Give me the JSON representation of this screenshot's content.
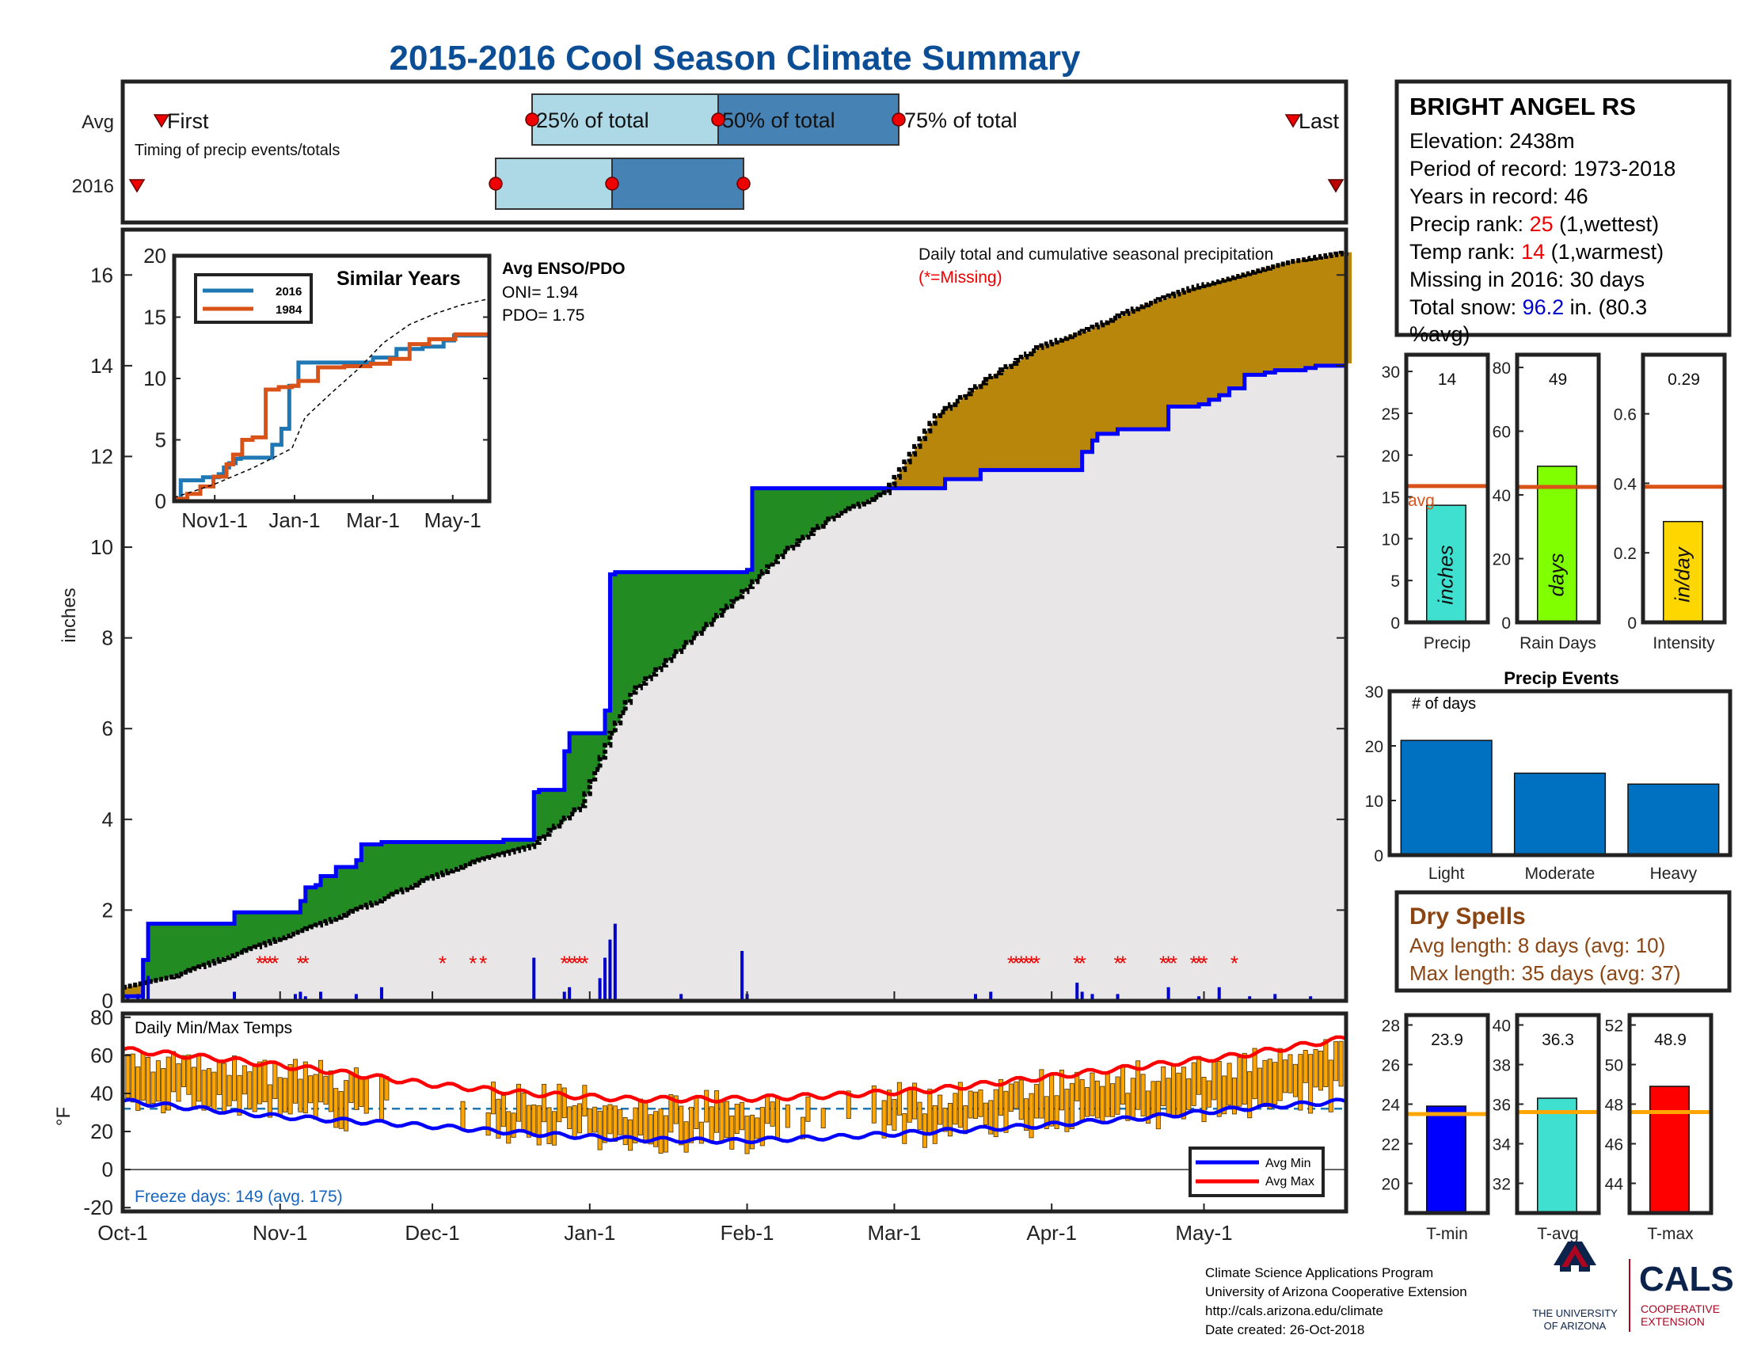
{
  "title": "2015-2016 Cool Season Climate Summary",
  "timing": {
    "row_labels": [
      "Avg",
      "2016"
    ],
    "first_label": "First",
    "last_label": "Last",
    "caption": "Timing of precip events/totals",
    "pct_labels": [
      "25% of total",
      "50% of total",
      "75% of total"
    ]
  },
  "station": {
    "name": "BRIGHT ANGEL RS",
    "elevation": "Elevation: 2438m",
    "period": "Period of record: 1973-2018",
    "years": "Years in record: 46",
    "precip_rank_label": "Precip rank: ",
    "precip_rank": "25",
    "precip_rank_note": " (1,wettest)",
    "temp_rank_label": "Temp rank: ",
    "temp_rank": "14",
    "temp_rank_note": " (1,warmest)",
    "missing": "Missing in 2016: 30 days",
    "snow_label": "Total snow: ",
    "snow_value": "96.2",
    "snow_note": " in. (80.3",
    "snow_note2": "%avg)"
  },
  "precip_summary": [
    {
      "label": "Precip",
      "value": 14,
      "value_text": "14",
      "unit": "inches",
      "avg": 16.3,
      "ylim": [
        0,
        32
      ],
      "ticks": [
        0,
        5,
        10,
        15,
        20,
        25,
        30
      ],
      "color": "#40e0d0",
      "avg_label": "avg"
    },
    {
      "label": "Rain Days",
      "value": 49,
      "value_text": "49",
      "unit": "days",
      "avg": 42.5,
      "ylim": [
        0,
        84
      ],
      "ticks": [
        0,
        20,
        40,
        60,
        80
      ],
      "color": "#80ff00"
    },
    {
      "label": "Intensity",
      "value": 0.29,
      "value_text": "0.29",
      "unit": "in/day",
      "avg": 0.39,
      "ylim": [
        0,
        0.77
      ],
      "ticks": [
        0,
        0.2,
        0.4,
        0.6
      ],
      "color": "#ffd700"
    }
  ],
  "precip_events": {
    "title": "Precip Events",
    "ylabel": "# of days",
    "categories": [
      "Light",
      "Moderate",
      "Heavy"
    ],
    "values": [
      21,
      15,
      13
    ],
    "ylim": [
      0,
      30
    ],
    "ticks": [
      0,
      10,
      20,
      30
    ],
    "color": "#0070c0"
  },
  "dry_spells": {
    "title": "Dry Spells",
    "avg_length": "Avg length: 8 days (avg: 10)",
    "max_length": "Max length: 35 days (avg: 37)"
  },
  "temp_summary": [
    {
      "label": "T-min",
      "value": 23.9,
      "value_text": "23.9",
      "avg": 23.5,
      "ylim": [
        18.5,
        28.5
      ],
      "ticks": [
        20,
        22,
        24,
        26,
        28
      ],
      "color": "#0000ff"
    },
    {
      "label": "T-avg",
      "value": 36.3,
      "value_text": "36.3",
      "avg": 35.6,
      "ylim": [
        30.5,
        40.5
      ],
      "ticks": [
        32,
        34,
        36,
        38,
        40
      ],
      "color": "#40e0d0"
    },
    {
      "label": "T-max",
      "value": 48.9,
      "value_text": "48.9",
      "avg": 47.6,
      "ylim": [
        42.5,
        52.5
      ],
      "ticks": [
        44,
        46,
        48,
        50,
        52
      ],
      "color": "#ff0000"
    }
  ],
  "chart_data": {
    "type": "area",
    "ylabel": "inches",
    "ylim": [
      0,
      17
    ],
    "yticks": [
      0,
      2,
      4,
      6,
      8,
      10,
      12,
      14,
      16
    ],
    "xlim": [
      0,
      241
    ],
    "xticks": [
      {
        "day": 0,
        "label": "Oct-1"
      },
      {
        "day": 31,
        "label": "Nov-1"
      },
      {
        "day": 61,
        "label": "Dec-1"
      },
      {
        "day": 92,
        "label": "Jan-1"
      },
      {
        "day": 123,
        "label": "Feb-1"
      },
      {
        "day": 152,
        "label": "Mar-1"
      },
      {
        "day": 183,
        "label": "Apr-1"
      },
      {
        "day": 213,
        "label": "May-1"
      }
    ],
    "annotation": "Daily total and cumulative seasonal precipitation",
    "missing_note": "(*=Missing)",
    "series": [
      {
        "name": "2016 cumulative",
        "color": "#0000ff",
        "x": [
          0,
          3,
          4,
          5,
          22,
          34,
          35,
          36,
          38,
          39,
          42,
          46,
          47,
          51,
          75,
          81,
          82,
          87,
          88,
          94,
          95,
          96,
          97,
          123,
          124,
          152,
          161,
          162,
          168,
          169,
          171,
          188,
          189,
          191,
          192,
          196,
          199,
          205,
          206,
          212,
          214,
          216,
          218,
          220,
          221,
          225,
          227,
          233,
          235,
          241
        ],
        "y": [
          0.1,
          0.1,
          0.9,
          1.7,
          1.95,
          1.95,
          2.2,
          2.5,
          2.55,
          2.75,
          2.95,
          3.1,
          3.45,
          3.5,
          3.55,
          4.6,
          4.65,
          5.5,
          5.9,
          5.9,
          6.4,
          9.4,
          9.45,
          9.5,
          11.3,
          11.3,
          11.3,
          11.5,
          11.5,
          11.7,
          11.7,
          11.7,
          12.1,
          12.35,
          12.5,
          12.6,
          12.6,
          12.6,
          13.1,
          13.15,
          13.25,
          13.35,
          13.5,
          13.5,
          13.8,
          13.85,
          13.9,
          13.95,
          14.0,
          14.05
        ]
      },
      {
        "name": "Avg cumulative",
        "color": "#000000",
        "x": [
          0,
          10,
          20,
          30,
          40,
          50,
          60,
          70,
          80,
          90,
          96,
          100,
          110,
          120,
          130,
          140,
          150,
          160,
          170,
          180,
          190,
          200,
          210,
          220,
          230,
          241
        ],
        "y": [
          0.3,
          0.55,
          0.95,
          1.35,
          1.75,
          2.2,
          2.7,
          3.1,
          3.4,
          4.3,
          5.9,
          6.8,
          7.8,
          8.8,
          9.9,
          10.7,
          11.2,
          12.9,
          13.7,
          14.4,
          14.8,
          15.3,
          15.7,
          16.0,
          16.3,
          16.5
        ]
      }
    ],
    "daily_precip_bars": {
      "day": [
        1,
        3,
        4,
        5,
        22,
        34,
        35,
        36,
        39,
        46,
        51,
        81,
        87,
        88,
        94,
        95,
        96,
        97,
        110,
        122,
        123,
        168,
        171,
        188,
        189,
        191,
        196,
        206,
        212,
        216,
        222,
        227,
        234
      ],
      "inches": [
        0.1,
        0.15,
        0.9,
        0.55,
        0.2,
        0.15,
        0.2,
        0.1,
        0.2,
        0.15,
        0.3,
        0.95,
        0.2,
        0.3,
        0.5,
        0.95,
        1.35,
        1.7,
        0.15,
        1.1,
        0.15,
        0.15,
        0.2,
        0.4,
        0.2,
        0.15,
        0.15,
        0.3,
        0.1,
        0.3,
        0.1,
        0.15,
        0.1
      ]
    },
    "missing_days": [
      27,
      28,
      29,
      30,
      35,
      36,
      63,
      69,
      71,
      87,
      88,
      89,
      90,
      91,
      175,
      176,
      177,
      178,
      179,
      180,
      188,
      189,
      196,
      197,
      205,
      206,
      207,
      211,
      212,
      213,
      219
    ]
  },
  "similar_years": {
    "title": "Similar Years",
    "legend": [
      "2016",
      "1984"
    ],
    "ylim": [
      0,
      20
    ],
    "yticks": [
      0,
      5,
      10,
      15,
      20
    ],
    "xticks": [
      "Nov1-1",
      "Jan-1",
      "Mar-1",
      "May-1"
    ],
    "series": [
      {
        "name": "2016",
        "color": "#1f77b4",
        "x": [
          0,
          5,
          22,
          34,
          38,
          42,
          47,
          51,
          75,
          82,
          88,
          95,
          123,
          152,
          170,
          190,
          206,
          214,
          241
        ],
        "y": [
          0.1,
          1.7,
          1.95,
          2.2,
          2.75,
          3.1,
          3.45,
          3.55,
          4.6,
          5.9,
          9.4,
          11.3,
          11.3,
          11.7,
          12.4,
          12.6,
          13.1,
          13.5,
          14.05
        ]
      },
      {
        "name": "1984",
        "color": "#d95319",
        "x": [
          0,
          10,
          20,
          30,
          40,
          45,
          52,
          60,
          70,
          80,
          90,
          95,
          110,
          130,
          150,
          165,
          180,
          195,
          215,
          241
        ],
        "y": [
          0.2,
          0.6,
          1.2,
          2.0,
          3.0,
          3.8,
          5.0,
          5.2,
          9.1,
          9.3,
          9.4,
          9.8,
          10.9,
          11.0,
          11.2,
          11.6,
          12.8,
          13.2,
          13.6,
          13.6
        ]
      },
      {
        "name": "Avg",
        "color": "#000000",
        "x": [
          0,
          30,
          60,
          90,
          100,
          120,
          140,
          160,
          180,
          200,
          220,
          241
        ],
        "y": [
          0.3,
          1.35,
          2.7,
          4.3,
          6.8,
          8.8,
          10.7,
          12.9,
          14.4,
          15.3,
          16.0,
          16.5
        ]
      }
    ],
    "enso_title": "Avg ENSO/PDO",
    "oni": "ONI= 1.94",
    "pdo": "PDO= 1.75"
  },
  "temps": {
    "title": "Daily Min/Max Temps",
    "ylabel": "°F",
    "ylim": [
      -22,
      82
    ],
    "yticks": [
      -20,
      0,
      20,
      40,
      60,
      80
    ],
    "freeze_line": 32,
    "legend": [
      "Avg Min",
      "Avg Max"
    ],
    "freeze_days": "Freeze days: 149 (avg. 175)",
    "avg_min_points": [
      [
        0,
        36
      ],
      [
        30,
        28
      ],
      [
        60,
        23
      ],
      [
        80,
        19
      ],
      [
        100,
        16
      ],
      [
        120,
        15
      ],
      [
        140,
        17
      ],
      [
        160,
        20
      ],
      [
        180,
        23
      ],
      [
        200,
        27
      ],
      [
        220,
        32
      ],
      [
        241,
        36
      ]
    ],
    "avg_max_points": [
      [
        0,
        63
      ],
      [
        20,
        58
      ],
      [
        40,
        52
      ],
      [
        60,
        45
      ],
      [
        80,
        40
      ],
      [
        100,
        37
      ],
      [
        120,
        37
      ],
      [
        140,
        39
      ],
      [
        160,
        42
      ],
      [
        180,
        48
      ],
      [
        200,
        54
      ],
      [
        220,
        60
      ],
      [
        241,
        69
      ]
    ]
  },
  "footer": {
    "lines": [
      "Climate Science Applications Program",
      "University of Arizona Cooperative Extension",
      "http://cals.arizona.edu/climate",
      " Date created: 26-Oct-2018"
    ],
    "ua_name": "THE UNIVERSITY",
    "ua_name2": "OF ARIZONA",
    "cals": "CALS",
    "cals_sub": "COOPERATIVE",
    "cals_sub2": "EXTENSION"
  }
}
